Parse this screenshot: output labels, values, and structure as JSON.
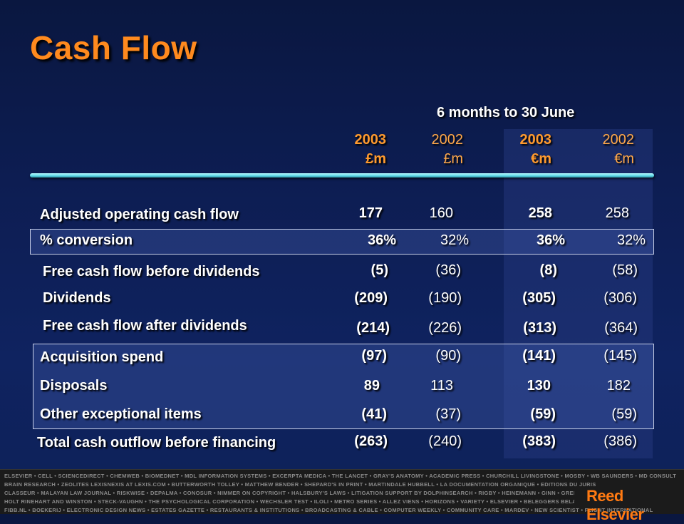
{
  "title": "Cash Flow",
  "period_heading": "6 months to 30 June",
  "columns": [
    {
      "year": "2003",
      "unit": "£m"
    },
    {
      "year": "2002",
      "unit": "£m"
    },
    {
      "year": "2003",
      "unit": "€m"
    },
    {
      "year": "2002",
      "unit": "€m"
    }
  ],
  "rows": [
    {
      "label": "Adjusted operating cash flow",
      "values": [
        "177",
        "160",
        "258",
        "258"
      ]
    },
    {
      "label": "% conversion",
      "values": [
        "36%",
        "32%",
        "36%",
        "32%"
      ]
    },
    {
      "label": "Free cash flow before dividends",
      "values": [
        "(5)",
        "(36)",
        "(8)",
        "(58)"
      ]
    },
    {
      "label": "Dividends",
      "values": [
        "(209)",
        "(190)",
        "(305)",
        "(306)"
      ]
    },
    {
      "label": "Free cash flow after dividends",
      "values": [
        "(214)",
        "(226)",
        "(313)",
        "(364)"
      ]
    },
    {
      "label": "Acquisition spend",
      "values": [
        "(97)",
        "(90)",
        "(141)",
        "(145)"
      ]
    },
    {
      "label": "Disposals",
      "values": [
        "89",
        "113",
        "130",
        "182"
      ]
    },
    {
      "label": "Other exceptional items",
      "values": [
        "(41)",
        "(37)",
        "(59)",
        "(59)"
      ]
    },
    {
      "label": "Total cash outflow before financing",
      "values": [
        "(263)",
        "(240)",
        "(383)",
        "(386)"
      ]
    }
  ],
  "footer": {
    "lines": [
      "ELSEVIER • CELL • SCIENCEDIRECT • CHEMWEB • BIOMEDNET • MDL INFORMATION SYSTEMS • EXCERPTA MEDICA • THE LANCET • GRAY'S ANATOMY • ACADEMIC PRESS • CHURCHILL LIVINGSTONE • MOSBY • WB SAUNDERS • MD CONSULT",
      "BRAIN RESEARCH • ZEOLITES LEXISNEXIS AT LEXIS.COM • BUTTERWORTH TOLLEY • MATTHEW BENDER • SHEPARD'S IN PRINT • MARTINDALE HUBBELL • LA DOCUMENTATION ORGANIQUE • EDITIONS DU JURIS",
      "CLASSEUR • MALAYAN LAW JOURNAL • RISKWISE • DEPALMA • CONOSUR • NIMMER ON COPYRIGHT • HALSBURY'S LAWS • LITIGATION SUPPORT BY DOLPHINSEARCH • RIGBY • HEINEMANN • GINN • GREENWOOD",
      "HOLT RINEHART AND WINSTON • STECK-VAUGHN • THE PSYCHOLOGICAL CORPORATION • WECHSLER TEST • ILOLI • METRO SERIES • ALLEZ VIENS • HORIZONS • VARIETY • ELSEVIER • BELEGGERS BELANGEN",
      "FIBB.NL • BOEKERIJ • ELECTRONIC DESIGN NEWS • ESTATES GAZETTE • RESTAURANTS & INSTITUTIONS • BROADCASTING & CABLE • COMPUTER WEEKLY • COMMUNITY CARE • MARDEV • NEW SCIENTIST • FLIGHT INTERNATIONAL"
    ],
    "brand": "Reed Elsevier"
  }
}
